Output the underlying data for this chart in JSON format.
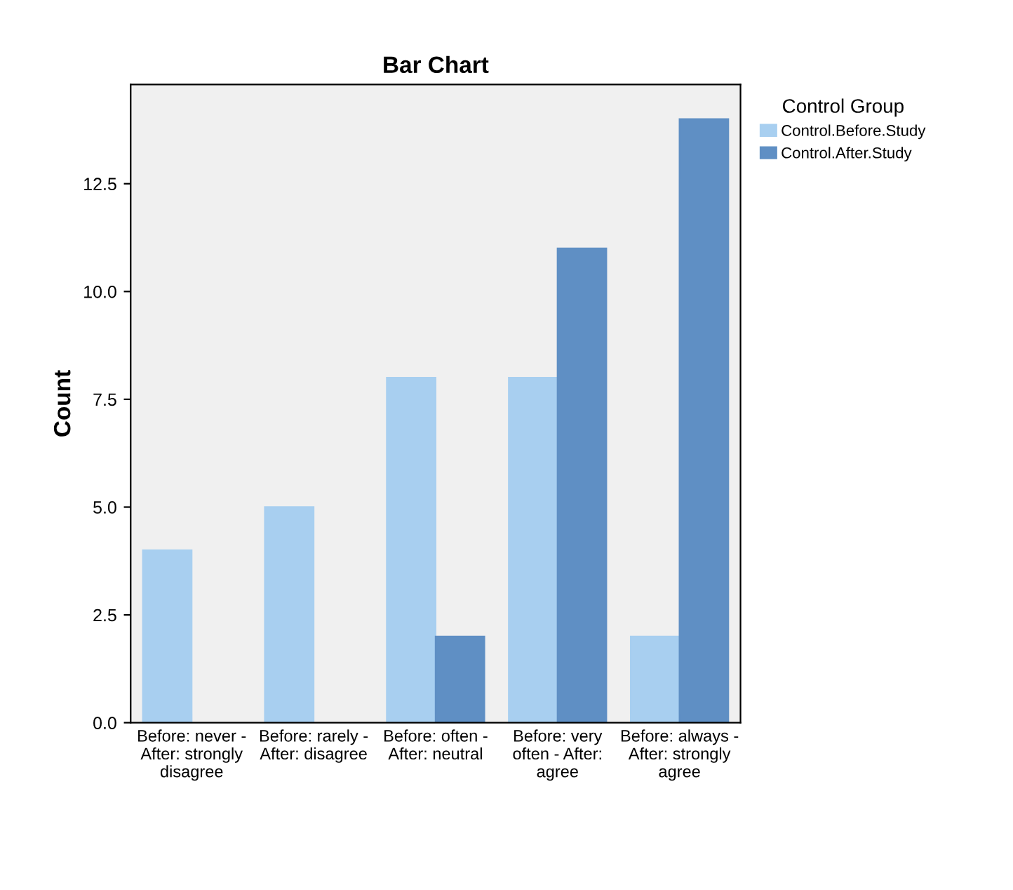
{
  "chart_data": {
    "type": "bar",
    "title": "Bar Chart",
    "ylabel": "Count",
    "legend_title": "Control Group",
    "categories": [
      "Before: never - After: strongly disagree",
      "Before: rarely - After: disagree",
      "Before: often - After: neutral",
      "Before: very often - After: agree",
      "Before: always - After: strongly agree"
    ],
    "series": [
      {
        "name": "Control.Before.Study",
        "color": "#a8cff0",
        "values": [
          4,
          5,
          8,
          8,
          2
        ]
      },
      {
        "name": "Control.After.Study",
        "color": "#5f8fc4",
        "values": [
          null,
          null,
          2,
          11,
          14
        ]
      }
    ],
    "ylim": [
      0,
      14.8
    ],
    "yticks": [
      {
        "value": 0,
        "label": "0.0"
      },
      {
        "value": 2.5,
        "label": "2.5"
      },
      {
        "value": 5,
        "label": "5.0"
      },
      {
        "value": 7.5,
        "label": "7.5"
      },
      {
        "value": 10,
        "label": "10.0"
      },
      {
        "value": 12.5,
        "label": "12.5"
      }
    ],
    "grid": false,
    "legend": "top right"
  }
}
